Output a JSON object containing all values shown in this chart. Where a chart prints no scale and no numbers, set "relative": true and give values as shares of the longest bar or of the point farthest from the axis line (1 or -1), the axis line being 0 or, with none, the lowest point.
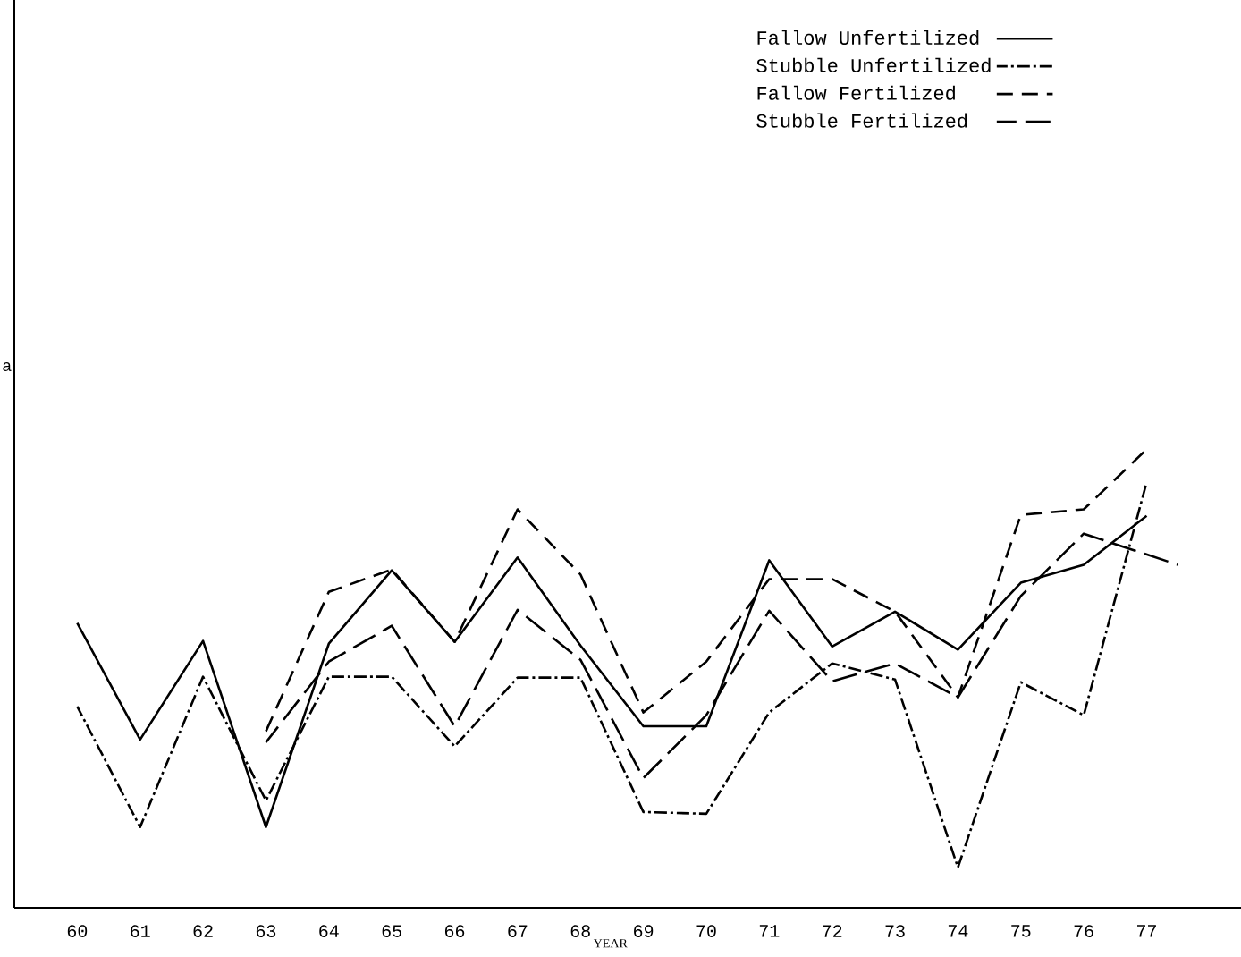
{
  "chart_data": {
    "type": "line",
    "relative": true,
    "xlabel": "YEAR",
    "ylabel": "a",
    "xlim": [
      59,
      78.5
    ],
    "xticks": [
      60,
      61,
      62,
      63,
      64,
      65,
      66,
      67,
      68,
      69,
      70,
      71,
      72,
      73,
      74,
      75,
      76,
      77
    ],
    "legend": "top right",
    "grid": false,
    "marker": "none",
    "series": [
      {
        "name": "Fallow Unfertilized",
        "color": "#000000",
        "line_style": "solid",
        "x": [
          60,
          61,
          62,
          63,
          64,
          65,
          66,
          67,
          68,
          69,
          70,
          71,
          72,
          73,
          74,
          75,
          76,
          77
        ],
        "values": [
          0.621,
          0.367,
          0.582,
          0.176,
          0.576,
          0.736,
          0.58,
          0.764,
          0.572,
          0.396,
          0.396,
          0.758,
          0.57,
          0.646,
          0.563,
          0.709,
          0.748,
          0.855
        ]
      },
      {
        "name": "Stubble Unfertilized",
        "color": "#000000",
        "line_style": "dashdot",
        "x": [
          60,
          61,
          62,
          63,
          64,
          65,
          66,
          67,
          68,
          69,
          70,
          71,
          72,
          73,
          74,
          75,
          76,
          77
        ],
        "values": [
          0.439,
          0.176,
          0.504,
          0.234,
          0.504,
          0.504,
          0.352,
          0.502,
          0.502,
          0.209,
          0.205,
          0.426,
          0.533,
          0.498,
          0.088,
          0.492,
          0.42,
          0.928
        ]
      },
      {
        "name": "Fallow Fertilized",
        "color": "#000000",
        "line_style": "dashed",
        "x": [
          63,
          64,
          65,
          66,
          67,
          68,
          69,
          70,
          71,
          72,
          73,
          74,
          75,
          76,
          77
        ],
        "values": [
          0.385,
          0.689,
          0.738,
          0.58,
          0.869,
          0.727,
          0.426,
          0.537,
          0.717,
          0.717,
          0.646,
          0.459,
          0.857,
          0.869,
          1
        ]
      },
      {
        "name": "Stubble Fertilized",
        "color": "#000000",
        "line_style": "longdash",
        "x": [
          63,
          64,
          65,
          66,
          67,
          68,
          69,
          70,
          71,
          72,
          73,
          74,
          75,
          76,
          77.5
        ],
        "values": [
          0.361,
          0.537,
          0.615,
          0.396,
          0.65,
          0.541,
          0.283,
          0.42,
          0.648,
          0.494,
          0.533,
          0.459,
          0.68,
          0.816,
          0.748
        ]
      }
    ]
  }
}
